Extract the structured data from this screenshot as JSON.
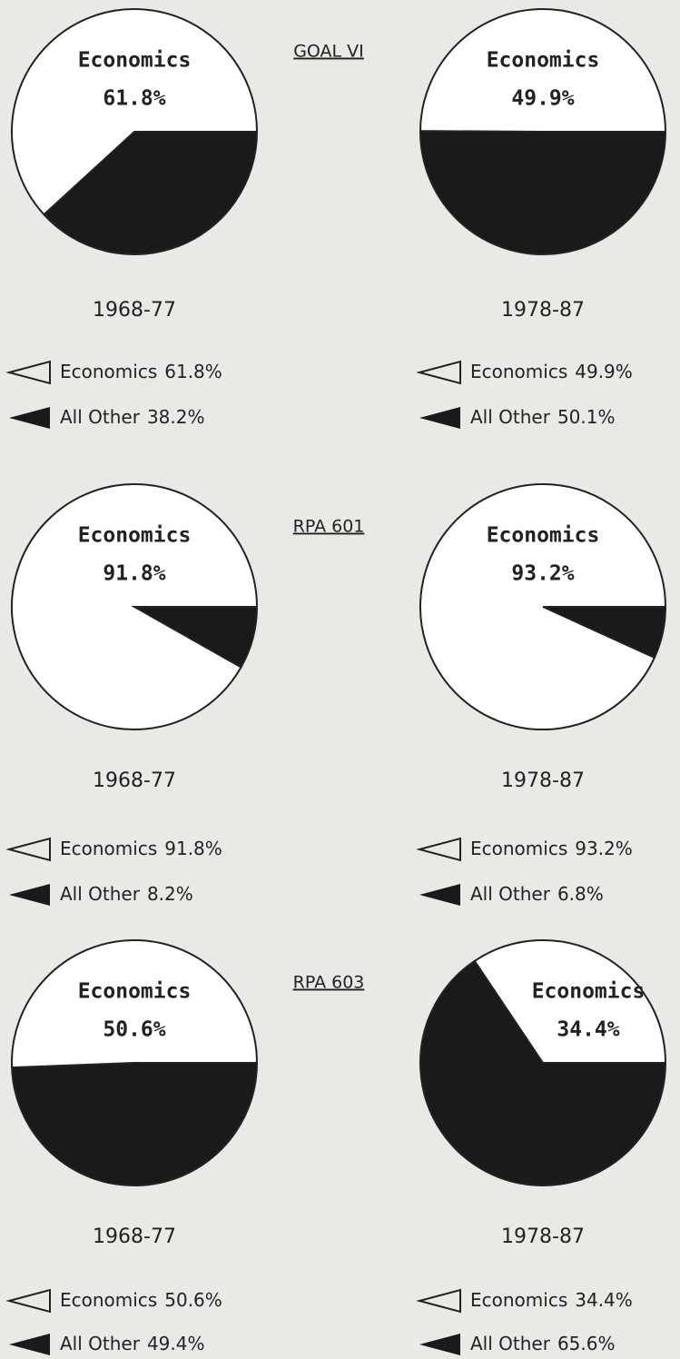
{
  "headings": [
    "GOAL VI",
    "RPA 601",
    "RPA 603"
  ],
  "chart_data": [
    {
      "type": "pie",
      "caption": "1968-77",
      "categories": [
        "Economics",
        "All Other"
      ],
      "values": [
        61.8,
        38.2
      ],
      "value_labels": [
        "61.8%",
        "38.2%"
      ],
      "colors": [
        "#ffffff",
        "#1a1a1a"
      ]
    },
    {
      "type": "pie",
      "caption": "1978-87",
      "categories": [
        "Economics",
        "All Other"
      ],
      "values": [
        49.9,
        50.1
      ],
      "value_labels": [
        "49.9%",
        "50.1%"
      ],
      "colors": [
        "#ffffff",
        "#1a1a1a"
      ]
    },
    {
      "type": "pie",
      "caption": "1968-77",
      "categories": [
        "Economics",
        "All Other"
      ],
      "values": [
        91.8,
        8.2
      ],
      "value_labels": [
        "91.8%",
        "8.2%"
      ],
      "colors": [
        "#ffffff",
        "#1a1a1a"
      ]
    },
    {
      "type": "pie",
      "caption": "1978-87",
      "categories": [
        "Economics",
        "All Other"
      ],
      "values": [
        93.2,
        6.8
      ],
      "value_labels": [
        "93.2%",
        "6.8%"
      ],
      "colors": [
        "#ffffff",
        "#1a1a1a"
      ]
    },
    {
      "type": "pie",
      "caption": "1968-77",
      "categories": [
        "Economics",
        "All Other"
      ],
      "values": [
        50.6,
        49.4
      ],
      "value_labels": [
        "50.6%",
        "49.4%"
      ],
      "colors": [
        "#ffffff",
        "#1a1a1a"
      ]
    },
    {
      "type": "pie",
      "caption": "1978-87",
      "categories": [
        "Economics",
        "All Other"
      ],
      "values": [
        34.4,
        65.6
      ],
      "value_labels": [
        "34.4%",
        "65.6%"
      ],
      "colors": [
        "#ffffff",
        "#1a1a1a"
      ]
    }
  ]
}
